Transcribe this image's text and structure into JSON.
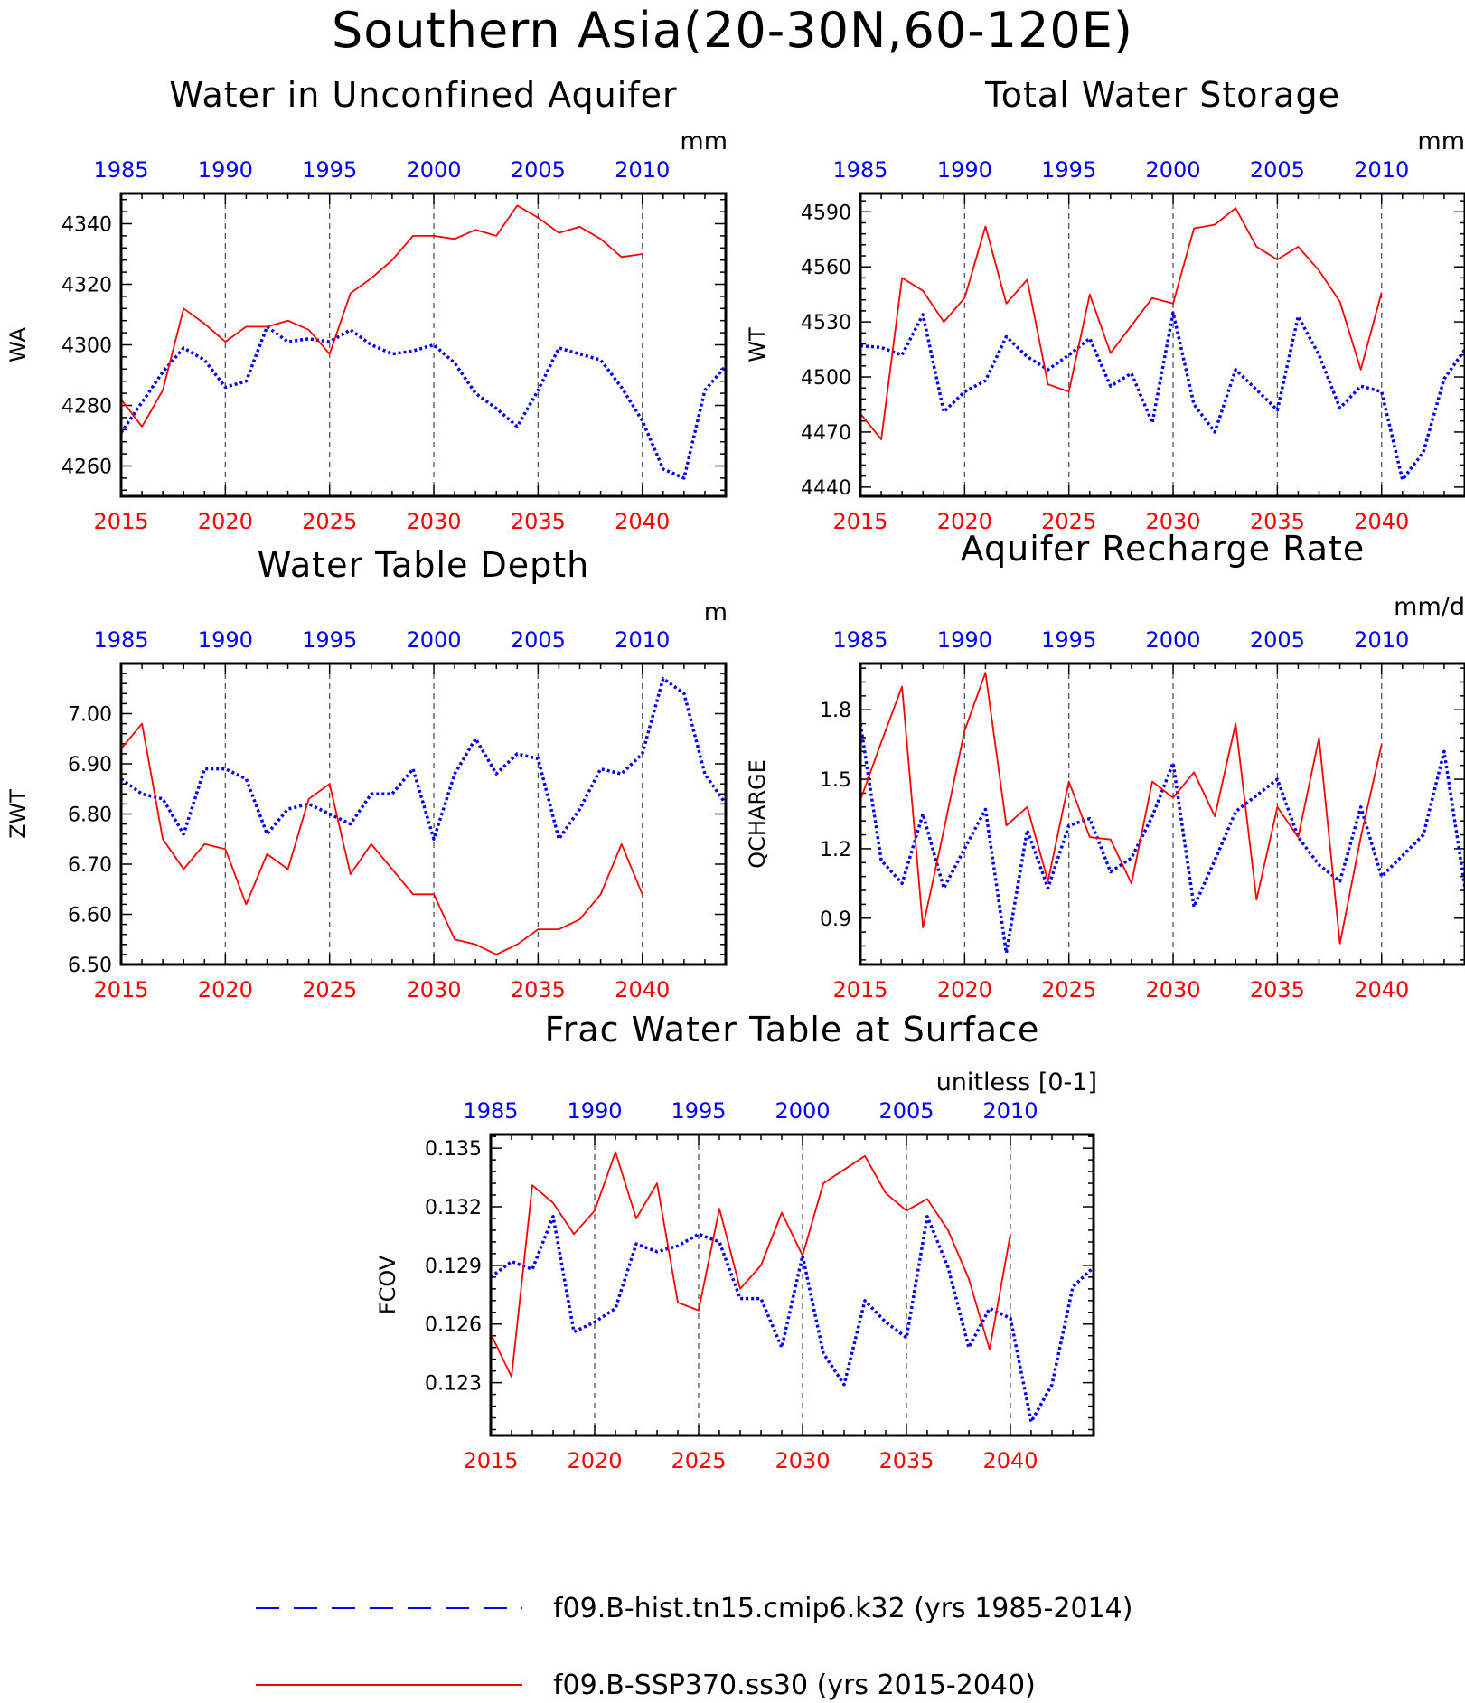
{
  "figure": {
    "title": "Southern Asia(20-30N,60-120E)"
  },
  "colors": {
    "hist": "#0000ff",
    "ssp": "#ff0000",
    "axis": "#000000",
    "grid": "#555555"
  },
  "legend": {
    "hist_label": "f09.B-hist.tn15.cmip6.k32 (yrs 1985-2014)",
    "ssp_label": "f09.B-SSP370.ss30 (yrs 2015-2040)"
  },
  "chart_data": [
    {
      "type": "line",
      "title": "Water in Unconfined Aquifer",
      "units": "mm",
      "ylabel": "WA",
      "ylim": [
        4250,
        4350
      ],
      "yticks": [
        4260,
        4280,
        4300,
        4320,
        4340
      ],
      "ytick_labels": [
        "4260",
        "4280",
        "4300",
        "4320",
        "4340"
      ],
      "grid": "dashed vertical",
      "x_top": {
        "ticks": [
          1985,
          1990,
          1995,
          2000,
          2005,
          2010
        ],
        "range": [
          1985,
          2014
        ]
      },
      "x_bottom": {
        "ticks": [
          2015,
          2020,
          2025,
          2030,
          2035,
          2040
        ],
        "range": [
          2015,
          2044
        ]
      },
      "series": [
        {
          "name": "f09.B-hist.tn15.cmip6.k32",
          "style": "dotted",
          "x": [
            1985,
            1986,
            1987,
            1988,
            1989,
            1990,
            1991,
            1992,
            1993,
            1994,
            1995,
            1996,
            1997,
            1998,
            1999,
            2000,
            2001,
            2002,
            2003,
            2004,
            2005,
            2006,
            2007,
            2008,
            2009,
            2010,
            2011,
            2012,
            2013,
            2014
          ],
          "y": [
            4271,
            4281,
            4291,
            4299,
            4295,
            4286,
            4288,
            4306,
            4301,
            4302,
            4301,
            4305,
            4300,
            4297,
            4298,
            4300,
            4294,
            4284,
            4279,
            4273,
            4285,
            4299,
            4297,
            4295,
            4286,
            4275,
            4259,
            4256,
            4285,
            4293
          ]
        },
        {
          "name": "f09.B-SSP370.ss30",
          "style": "solid",
          "x": [
            2015,
            2016,
            2017,
            2018,
            2019,
            2020,
            2021,
            2022,
            2023,
            2024,
            2025,
            2026,
            2027,
            2028,
            2029,
            2030,
            2031,
            2032,
            2033,
            2034,
            2035,
            2036,
            2037,
            2038,
            2039,
            2040
          ],
          "y": [
            4282,
            4273,
            4285,
            4312,
            4307,
            4301,
            4306,
            4306,
            4308,
            4305,
            4297,
            4317,
            4322,
            4328,
            4336,
            4336,
            4335,
            4338,
            4336,
            4346,
            4342,
            4337,
            4339,
            4335,
            4329,
            4330
          ]
        }
      ]
    },
    {
      "type": "line",
      "title": "Total Water Storage",
      "units": "mm",
      "ylabel": "WT",
      "ylim": [
        4435,
        4600
      ],
      "yticks": [
        4440,
        4470,
        4500,
        4530,
        4560,
        4590
      ],
      "ytick_labels": [
        "4440",
        "4470",
        "4500",
        "4530",
        "4560",
        "4590"
      ],
      "grid": "dashed vertical",
      "x_top": {
        "ticks": [
          1985,
          1990,
          1995,
          2000,
          2005,
          2010
        ],
        "range": [
          1985,
          2014
        ]
      },
      "x_bottom": {
        "ticks": [
          2015,
          2020,
          2025,
          2030,
          2035,
          2040
        ],
        "range": [
          2015,
          2044
        ]
      },
      "series": [
        {
          "name": "f09.B-hist.tn15.cmip6.k32",
          "style": "dotted",
          "x": [
            1985,
            1986,
            1987,
            1988,
            1989,
            1990,
            1991,
            1992,
            1993,
            1994,
            1995,
            1996,
            1997,
            1998,
            1999,
            2000,
            2001,
            2002,
            2003,
            2004,
            2005,
            2006,
            2007,
            2008,
            2009,
            2010,
            2011,
            2012,
            2013,
            2014
          ],
          "y": [
            4517,
            4516,
            4512,
            4534,
            4481,
            4492,
            4498,
            4522,
            4511,
            4504,
            4512,
            4521,
            4495,
            4502,
            4475,
            4535,
            4485,
            4470,
            4504,
            4493,
            4482,
            4533,
            4512,
            4483,
            4495,
            4492,
            4444,
            4459,
            4499,
            4515
          ]
        },
        {
          "name": "f09.B-SSP370.ss30",
          "style": "solid",
          "x": [
            2015,
            2016,
            2017,
            2018,
            2019,
            2020,
            2021,
            2022,
            2023,
            2024,
            2025,
            2026,
            2027,
            2028,
            2029,
            2030,
            2031,
            2032,
            2033,
            2034,
            2035,
            2036,
            2037,
            2038,
            2039,
            2040
          ],
          "y": [
            4480,
            4466,
            4554,
            4547,
            4530,
            4543,
            4582,
            4540,
            4553,
            4496,
            4492,
            4545,
            4513,
            4528,
            4543,
            4540,
            4581,
            4583,
            4592,
            4571,
            4564,
            4571,
            4558,
            4541,
            4504,
            4546
          ]
        }
      ]
    },
    {
      "type": "line",
      "title": "Water Table Depth",
      "units": "m",
      "ylabel": "ZWT",
      "ylim": [
        6.5,
        7.1
      ],
      "yticks": [
        6.5,
        6.6,
        6.7,
        6.8,
        6.9,
        7.0
      ],
      "ytick_labels": [
        "6.50",
        "6.60",
        "6.70",
        "6.80",
        "6.90",
        "7.00"
      ],
      "grid": "dashed vertical",
      "x_top": {
        "ticks": [
          1985,
          1990,
          1995,
          2000,
          2005,
          2010
        ],
        "range": [
          1985,
          2014
        ]
      },
      "x_bottom": {
        "ticks": [
          2015,
          2020,
          2025,
          2030,
          2035,
          2040
        ],
        "range": [
          2015,
          2044
        ]
      },
      "series": [
        {
          "name": "f09.B-hist.tn15.cmip6.k32",
          "style": "dotted",
          "x": [
            1985,
            1986,
            1987,
            1988,
            1989,
            1990,
            1991,
            1992,
            1993,
            1994,
            1995,
            1996,
            1997,
            1998,
            1999,
            2000,
            2001,
            2002,
            2003,
            2004,
            2005,
            2006,
            2007,
            2008,
            2009,
            2010,
            2011,
            2012,
            2013,
            2014
          ],
          "y": [
            6.87,
            6.84,
            6.83,
            6.76,
            6.89,
            6.89,
            6.87,
            6.76,
            6.81,
            6.82,
            6.8,
            6.78,
            6.84,
            6.84,
            6.89,
            6.75,
            6.88,
            6.95,
            6.88,
            6.92,
            6.91,
            6.75,
            6.81,
            6.89,
            6.88,
            6.92,
            7.07,
            7.04,
            6.88,
            6.82
          ]
        },
        {
          "name": "f09.B-SSP370.ss30",
          "style": "solid",
          "x": [
            2015,
            2016,
            2017,
            2018,
            2019,
            2020,
            2021,
            2022,
            2023,
            2024,
            2025,
            2026,
            2027,
            2028,
            2029,
            2030,
            2031,
            2032,
            2033,
            2034,
            2035,
            2036,
            2037,
            2038,
            2039,
            2040
          ],
          "y": [
            6.93,
            6.98,
            6.75,
            6.69,
            6.74,
            6.73,
            6.62,
            6.72,
            6.69,
            6.83,
            6.86,
            6.68,
            6.74,
            6.69,
            6.64,
            6.64,
            6.55,
            6.54,
            6.52,
            6.54,
            6.57,
            6.57,
            6.59,
            6.64,
            6.74,
            6.64
          ]
        }
      ]
    },
    {
      "type": "line",
      "title": "Aquifer Recharge Rate",
      "units": "mm/d",
      "ylabel": "QCHARGE",
      "ylim": [
        0.7,
        2.0
      ],
      "yticks": [
        0.9,
        1.2,
        1.5,
        1.8
      ],
      "ytick_labels": [
        "0.9",
        "1.2",
        "1.5",
        "1.8"
      ],
      "grid": "dashed vertical",
      "x_top": {
        "ticks": [
          1985,
          1990,
          1995,
          2000,
          2005,
          2010
        ],
        "range": [
          1985,
          2014
        ]
      },
      "x_bottom": {
        "ticks": [
          2015,
          2020,
          2025,
          2030,
          2035,
          2040
        ],
        "range": [
          2015,
          2044
        ]
      },
      "series": [
        {
          "name": "f09.B-hist.tn15.cmip6.k32",
          "style": "dotted",
          "x": [
            1985,
            1986,
            1987,
            1988,
            1989,
            1990,
            1991,
            1992,
            1993,
            1994,
            1995,
            1996,
            1997,
            1998,
            1999,
            2000,
            2001,
            2002,
            2003,
            2004,
            2005,
            2006,
            2007,
            2008,
            2009,
            2010,
            2011,
            2012,
            2013,
            2014
          ],
          "y": [
            1.74,
            1.15,
            1.05,
            1.35,
            1.03,
            1.2,
            1.37,
            0.75,
            1.28,
            1.03,
            1.3,
            1.33,
            1.1,
            1.16,
            1.34,
            1.57,
            0.95,
            1.15,
            1.36,
            1.43,
            1.5,
            1.25,
            1.13,
            1.06,
            1.38,
            1.08,
            1.17,
            1.26,
            1.62,
            1.03
          ]
        },
        {
          "name": "f09.B-SSP370.ss30",
          "style": "solid",
          "x": [
            2015,
            2016,
            2017,
            2018,
            2019,
            2020,
            2021,
            2022,
            2023,
            2024,
            2025,
            2026,
            2027,
            2028,
            2029,
            2030,
            2031,
            2032,
            2033,
            2034,
            2035,
            2036,
            2037,
            2038,
            2039,
            2040
          ],
          "y": [
            1.41,
            1.66,
            1.9,
            0.86,
            1.28,
            1.71,
            1.96,
            1.3,
            1.38,
            1.06,
            1.49,
            1.25,
            1.24,
            1.05,
            1.49,
            1.42,
            1.53,
            1.34,
            1.74,
            0.98,
            1.38,
            1.25,
            1.68,
            0.79,
            1.25,
            1.65
          ]
        }
      ]
    },
    {
      "type": "line",
      "title": "Frac Water Table at Surface",
      "units": "unitless [0-1]",
      "ylabel": "FCOV",
      "ylim": [
        0.1203,
        0.1357
      ],
      "yticks": [
        0.123,
        0.126,
        0.129,
        0.132,
        0.135
      ],
      "ytick_labels": [
        "0.123",
        "0.126",
        "0.129",
        "0.132",
        "0.135"
      ],
      "grid": "dashed vertical",
      "x_top": {
        "ticks": [
          1985,
          1990,
          1995,
          2000,
          2005,
          2010
        ],
        "range": [
          1985,
          2014
        ]
      },
      "x_bottom": {
        "ticks": [
          2015,
          2020,
          2025,
          2030,
          2035,
          2040
        ],
        "range": [
          2015,
          2044
        ]
      },
      "series": [
        {
          "name": "f09.B-hist.tn15.cmip6.k32",
          "style": "dotted",
          "x": [
            1985,
            1986,
            1987,
            1988,
            1989,
            1990,
            1991,
            1992,
            1993,
            1994,
            1995,
            1996,
            1997,
            1998,
            1999,
            2000,
            2001,
            2002,
            2003,
            2004,
            2005,
            2006,
            2007,
            2008,
            2009,
            2010,
            2011,
            2012,
            2013,
            2014
          ],
          "y": [
            0.1284,
            0.1292,
            0.1288,
            0.1315,
            0.1256,
            0.1261,
            0.1268,
            0.1301,
            0.1297,
            0.13,
            0.1306,
            0.1302,
            0.1273,
            0.1273,
            0.1248,
            0.1295,
            0.1245,
            0.1229,
            0.1272,
            0.1261,
            0.1253,
            0.1315,
            0.1289,
            0.1248,
            0.1268,
            0.1263,
            0.121,
            0.1229,
            0.1279,
            0.1289
          ]
        },
        {
          "name": "f09.B-SSP370.ss30",
          "style": "solid",
          "x": [
            2015,
            2016,
            2017,
            2018,
            2019,
            2020,
            2021,
            2022,
            2023,
            2024,
            2025,
            2026,
            2027,
            2028,
            2029,
            2030,
            2031,
            2032,
            2033,
            2034,
            2035,
            2036,
            2037,
            2038,
            2039,
            2040
          ],
          "y": [
            0.1255,
            0.1233,
            0.1331,
            0.1322,
            0.1306,
            0.1318,
            0.1348,
            0.1314,
            0.1332,
            0.1271,
            0.1267,
            0.1319,
            0.1278,
            0.129,
            0.1317,
            0.1295,
            0.1332,
            0.1339,
            0.1346,
            0.1327,
            0.1318,
            0.1324,
            0.1308,
            0.1283,
            0.1247,
            0.1306
          ]
        }
      ]
    }
  ]
}
